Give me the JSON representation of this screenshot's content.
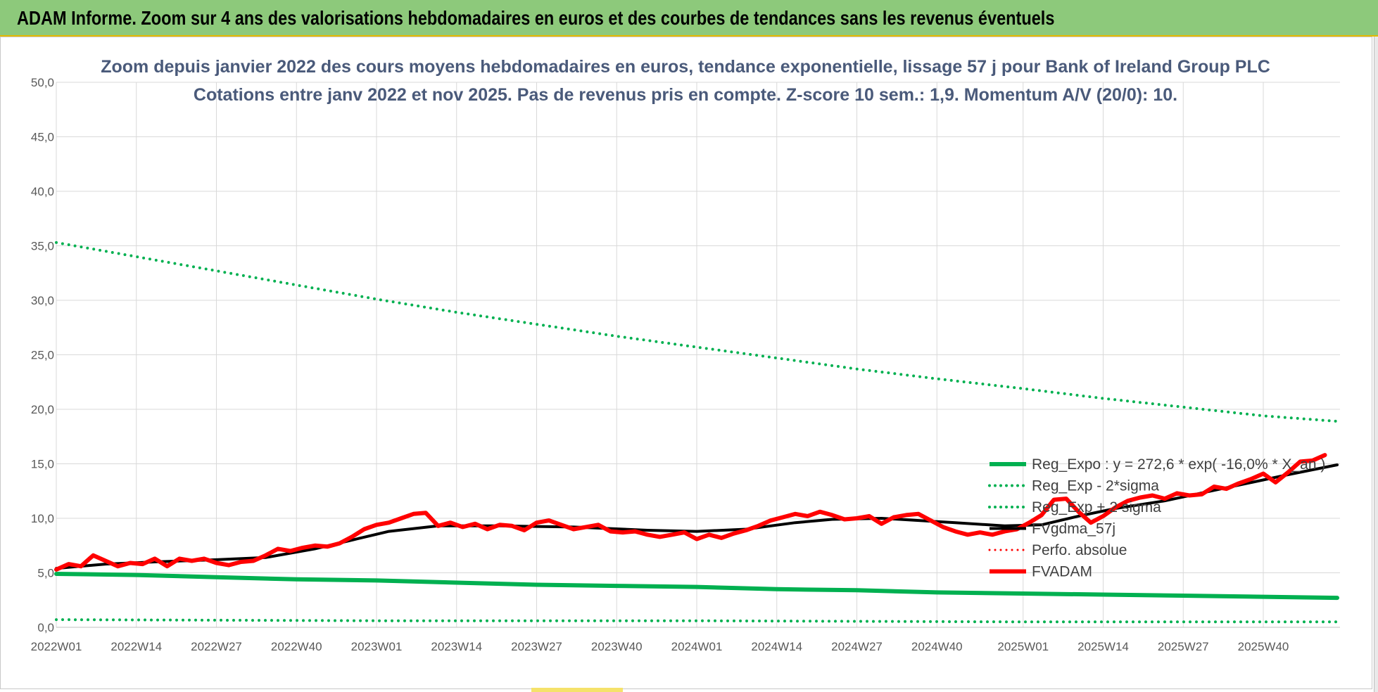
{
  "banner": {
    "title": "ADAM Informe. Zoom sur 4 ans des valorisations hebdomadaires en euros et des courbes de tendances sans les revenus éventuels"
  },
  "chart_data": {
    "type": "line",
    "title": "Zoom depuis janvier 2022 des cours moyens hebdomadaires en euros, tendance exponentielle, lissage 57 j pour Bank of Ireland Group PLC",
    "subtitle": "Cotations entre janv 2022 et nov 2025. Pas de revenus pris en compte. Z-score 10 sem.: 1,9. Momentum A/V (20/0): 10.",
    "xlabel": "",
    "ylabel": "",
    "ylim": [
      0,
      50
    ],
    "y_ticks": [
      "0,0",
      "5,0",
      "10,0",
      "15,0",
      "20,0",
      "25,0",
      "30,0",
      "35,0",
      "40,0",
      "45,0",
      "50,0"
    ],
    "x_range_weeks": [
      0,
      200
    ],
    "x_ticks": [
      {
        "label": "2022W01",
        "week": 0
      },
      {
        "label": "2022W14",
        "week": 13
      },
      {
        "label": "2022W27",
        "week": 26
      },
      {
        "label": "2022W40",
        "week": 39
      },
      {
        "label": "2023W01",
        "week": 52
      },
      {
        "label": "2023W14",
        "week": 65
      },
      {
        "label": "2023W27",
        "week": 78
      },
      {
        "label": "2023W40",
        "week": 91
      },
      {
        "label": "2024W01",
        "week": 104
      },
      {
        "label": "2024W14",
        "week": 117
      },
      {
        "label": "2024W27",
        "week": 130
      },
      {
        "label": "2024W40",
        "week": 143
      },
      {
        "label": "2025W01",
        "week": 157
      },
      {
        "label": "2025W14",
        "week": 170
      },
      {
        "label": "2025W27",
        "week": 183
      },
      {
        "label": "2025W40",
        "week": 196
      }
    ],
    "grid": true,
    "legend_position": "right",
    "series": [
      {
        "name": "Reg_Expo : y = 272,6 * exp( -16,0% * X_an )",
        "color": "#00b050",
        "style": "solid",
        "width": 6,
        "points": [
          [
            0,
            4.9
          ],
          [
            13,
            4.8
          ],
          [
            26,
            4.6
          ],
          [
            39,
            4.4
          ],
          [
            52,
            4.3
          ],
          [
            65,
            4.1
          ],
          [
            78,
            3.9
          ],
          [
            91,
            3.8
          ],
          [
            104,
            3.7
          ],
          [
            117,
            3.5
          ],
          [
            130,
            3.4
          ],
          [
            143,
            3.2
          ],
          [
            157,
            3.1
          ],
          [
            170,
            3.0
          ],
          [
            183,
            2.9
          ],
          [
            196,
            2.8
          ],
          [
            208,
            2.7
          ]
        ]
      },
      {
        "name": "Reg_Exp - 2*sigma",
        "color": "#00b050",
        "style": "dotted",
        "width": 4,
        "points": [
          [
            0,
            0.7
          ],
          [
            52,
            0.6
          ],
          [
            104,
            0.6
          ],
          [
            157,
            0.5
          ],
          [
            208,
            0.5
          ]
        ]
      },
      {
        "name": "Reg_Exp + 2 sigma",
        "color": "#00b050",
        "style": "dotted",
        "width": 4,
        "points": [
          [
            0,
            35.3
          ],
          [
            13,
            34.0
          ],
          [
            26,
            32.7
          ],
          [
            39,
            31.4
          ],
          [
            52,
            30.1
          ],
          [
            65,
            28.9
          ],
          [
            78,
            27.8
          ],
          [
            91,
            26.7
          ],
          [
            104,
            25.7
          ],
          [
            117,
            24.7
          ],
          [
            130,
            23.7
          ],
          [
            143,
            22.8
          ],
          [
            157,
            21.9
          ],
          [
            170,
            21.0
          ],
          [
            183,
            20.2
          ],
          [
            196,
            19.4
          ],
          [
            208,
            18.9
          ]
        ]
      },
      {
        "name": "FVgdma_57j",
        "color": "#000000",
        "style": "solid",
        "width": 4,
        "points": [
          [
            0,
            5.4
          ],
          [
            8,
            5.8
          ],
          [
            16,
            6.0
          ],
          [
            26,
            6.2
          ],
          [
            34,
            6.4
          ],
          [
            42,
            7.2
          ],
          [
            48,
            8.0
          ],
          [
            54,
            8.8
          ],
          [
            62,
            9.3
          ],
          [
            72,
            9.3
          ],
          [
            84,
            9.2
          ],
          [
            96,
            8.9
          ],
          [
            104,
            8.8
          ],
          [
            112,
            9.0
          ],
          [
            120,
            9.6
          ],
          [
            126,
            9.9
          ],
          [
            134,
            10.0
          ],
          [
            146,
            9.6
          ],
          [
            154,
            9.3
          ],
          [
            160,
            9.4
          ],
          [
            166,
            10.2
          ],
          [
            172,
            10.9
          ],
          [
            180,
            11.6
          ],
          [
            190,
            12.8
          ],
          [
            200,
            14.0
          ],
          [
            208,
            14.9
          ]
        ]
      },
      {
        "name": "Perfo. absolue",
        "color": "#ff0000",
        "style": "dotted",
        "width": 3,
        "points": []
      },
      {
        "name": "FVADAM",
        "color": "#ff0000",
        "style": "solid",
        "width": 6,
        "points": [
          [
            0,
            5.3
          ],
          [
            2,
            5.8
          ],
          [
            4,
            5.6
          ],
          [
            6,
            6.6
          ],
          [
            8,
            6.1
          ],
          [
            10,
            5.6
          ],
          [
            12,
            5.9
          ],
          [
            14,
            5.8
          ],
          [
            16,
            6.3
          ],
          [
            18,
            5.6
          ],
          [
            20,
            6.3
          ],
          [
            22,
            6.1
          ],
          [
            24,
            6.3
          ],
          [
            26,
            5.9
          ],
          [
            28,
            5.7
          ],
          [
            30,
            6.0
          ],
          [
            32,
            6.1
          ],
          [
            34,
            6.6
          ],
          [
            36,
            7.2
          ],
          [
            38,
            7.0
          ],
          [
            40,
            7.3
          ],
          [
            42,
            7.5
          ],
          [
            44,
            7.4
          ],
          [
            46,
            7.7
          ],
          [
            48,
            8.3
          ],
          [
            50,
            9.0
          ],
          [
            52,
            9.4
          ],
          [
            54,
            9.6
          ],
          [
            56,
            10.0
          ],
          [
            58,
            10.4
          ],
          [
            60,
            10.5
          ],
          [
            62,
            9.3
          ],
          [
            64,
            9.6
          ],
          [
            66,
            9.2
          ],
          [
            68,
            9.5
          ],
          [
            70,
            9.0
          ],
          [
            72,
            9.4
          ],
          [
            74,
            9.3
          ],
          [
            76,
            8.9
          ],
          [
            78,
            9.6
          ],
          [
            80,
            9.8
          ],
          [
            82,
            9.4
          ],
          [
            84,
            9.0
          ],
          [
            86,
            9.2
          ],
          [
            88,
            9.4
          ],
          [
            90,
            8.8
          ],
          [
            92,
            8.7
          ],
          [
            94,
            8.8
          ],
          [
            96,
            8.5
          ],
          [
            98,
            8.3
          ],
          [
            100,
            8.5
          ],
          [
            102,
            8.7
          ],
          [
            104,
            8.1
          ],
          [
            106,
            8.5
          ],
          [
            108,
            8.2
          ],
          [
            110,
            8.6
          ],
          [
            112,
            8.9
          ],
          [
            114,
            9.3
          ],
          [
            116,
            9.8
          ],
          [
            118,
            10.1
          ],
          [
            120,
            10.4
          ],
          [
            122,
            10.2
          ],
          [
            124,
            10.6
          ],
          [
            126,
            10.3
          ],
          [
            128,
            9.9
          ],
          [
            130,
            10.0
          ],
          [
            132,
            10.2
          ],
          [
            134,
            9.5
          ],
          [
            136,
            10.1
          ],
          [
            138,
            10.3
          ],
          [
            140,
            10.4
          ],
          [
            142,
            9.8
          ],
          [
            144,
            9.2
          ],
          [
            146,
            8.8
          ],
          [
            148,
            8.5
          ],
          [
            150,
            8.7
          ],
          [
            152,
            8.5
          ],
          [
            154,
            8.8
          ],
          [
            156,
            9.0
          ],
          [
            158,
            9.6
          ],
          [
            160,
            10.3
          ],
          [
            162,
            11.7
          ],
          [
            164,
            11.8
          ],
          [
            166,
            10.6
          ],
          [
            168,
            9.6
          ],
          [
            170,
            10.2
          ],
          [
            172,
            11.0
          ],
          [
            174,
            11.6
          ],
          [
            176,
            11.9
          ],
          [
            178,
            12.1
          ],
          [
            180,
            11.8
          ],
          [
            182,
            12.3
          ],
          [
            184,
            12.1
          ],
          [
            186,
            12.2
          ],
          [
            188,
            12.9
          ],
          [
            190,
            12.7
          ],
          [
            192,
            13.2
          ],
          [
            194,
            13.6
          ],
          [
            196,
            14.1
          ],
          [
            198,
            13.3
          ],
          [
            200,
            14.2
          ],
          [
            202,
            15.2
          ],
          [
            204,
            15.3
          ],
          [
            206,
            15.8
          ]
        ]
      }
    ]
  }
}
